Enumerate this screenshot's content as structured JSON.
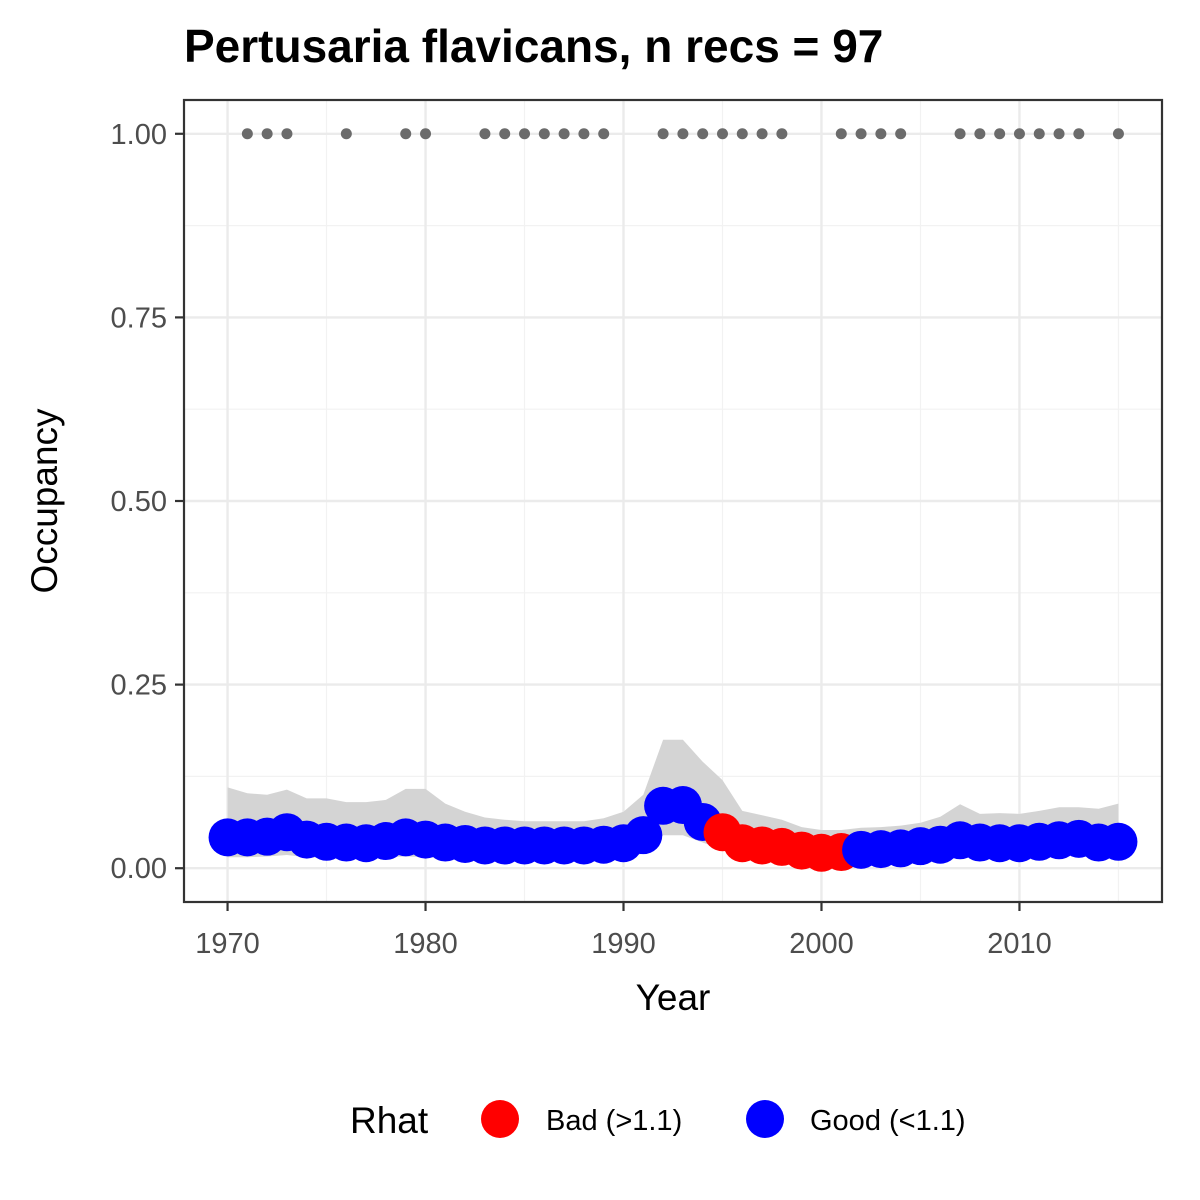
{
  "chart_data": {
    "type": "line",
    "title": "Pertusaria flavicans, n recs = 97",
    "xlabel": "Year",
    "ylabel": "Occupancy",
    "xlim": [
      1967.8,
      2017.2
    ],
    "ylim": [
      -0.046,
      1.046
    ],
    "x_ticks": [
      1970,
      1980,
      1990,
      2000,
      2010
    ],
    "x_tick_labels": [
      "1970",
      "1980",
      "1990",
      "2000",
      "2010"
    ],
    "y_ticks": [
      0,
      0.25,
      0.5,
      0.75,
      1
    ],
    "y_tick_labels": [
      "0.00",
      "0.25",
      "0.50",
      "0.75",
      "1.00"
    ],
    "grid": true,
    "legend": {
      "title": "Rhat",
      "position": "bottom",
      "entries": [
        {
          "key": "bad",
          "label": "Bad (>1.1)",
          "color": "#ff0000"
        },
        {
          "key": "good",
          "label": "Good (<1.1)",
          "color": "#0000ff"
        }
      ]
    },
    "colors": {
      "bad": "#ff0000",
      "good": "#0000ff",
      "ribbon": "#d4d4d4",
      "records": "#6b6b6b"
    },
    "years": [
      1970,
      1971,
      1972,
      1973,
      1974,
      1975,
      1976,
      1977,
      1978,
      1979,
      1980,
      1981,
      1982,
      1983,
      1984,
      1985,
      1986,
      1987,
      1988,
      1989,
      1990,
      1991,
      1992,
      1993,
      1994,
      1995,
      1996,
      1997,
      1998,
      1999,
      2000,
      2001,
      2002,
      2003,
      2004,
      2005,
      2006,
      2007,
      2008,
      2009,
      2010,
      2011,
      2012,
      2013,
      2014,
      2015
    ],
    "occupancy": [
      0.042,
      0.042,
      0.043,
      0.049,
      0.039,
      0.036,
      0.035,
      0.034,
      0.037,
      0.042,
      0.039,
      0.035,
      0.033,
      0.031,
      0.031,
      0.031,
      0.031,
      0.031,
      0.031,
      0.032,
      0.034,
      0.045,
      0.085,
      0.086,
      0.063,
      0.049,
      0.034,
      0.031,
      0.029,
      0.024,
      0.021,
      0.022,
      0.025,
      0.026,
      0.027,
      0.03,
      0.032,
      0.038,
      0.035,
      0.034,
      0.034,
      0.036,
      0.038,
      0.04,
      0.035,
      0.036
    ],
    "lower": [
      0.015,
      0.015,
      0.016,
      0.018,
      0.015,
      0.014,
      0.014,
      0.014,
      0.015,
      0.016,
      0.015,
      0.014,
      0.013,
      0.013,
      0.013,
      0.013,
      0.013,
      0.013,
      0.013,
      0.013,
      0.014,
      0.02,
      0.045,
      0.045,
      0.035,
      0.025,
      0.018,
      0.016,
      0.015,
      0.013,
      0.012,
      0.012,
      0.013,
      0.014,
      0.014,
      0.015,
      0.016,
      0.018,
      0.017,
      0.017,
      0.017,
      0.018,
      0.018,
      0.019,
      0.017,
      0.017
    ],
    "upper": [
      0.11,
      0.102,
      0.1,
      0.107,
      0.095,
      0.095,
      0.09,
      0.09,
      0.093,
      0.108,
      0.108,
      0.088,
      0.077,
      0.069,
      0.066,
      0.064,
      0.064,
      0.064,
      0.064,
      0.068,
      0.077,
      0.1,
      0.175,
      0.175,
      0.145,
      0.12,
      0.078,
      0.072,
      0.066,
      0.056,
      0.052,
      0.052,
      0.055,
      0.056,
      0.058,
      0.062,
      0.07,
      0.087,
      0.074,
      0.075,
      0.074,
      0.078,
      0.083,
      0.083,
      0.081,
      0.088
    ],
    "rhat": [
      "good",
      "good",
      "good",
      "good",
      "good",
      "good",
      "good",
      "good",
      "good",
      "good",
      "good",
      "good",
      "good",
      "good",
      "good",
      "good",
      "good",
      "good",
      "good",
      "good",
      "good",
      "good",
      "good",
      "good",
      "good",
      "bad",
      "bad",
      "bad",
      "bad",
      "bad",
      "bad",
      "bad",
      "good",
      "good",
      "good",
      "good",
      "good",
      "good",
      "good",
      "good",
      "good",
      "good",
      "good",
      "good",
      "good",
      "good"
    ],
    "record_years": [
      1971,
      1972,
      1973,
      1976,
      1979,
      1980,
      1983,
      1984,
      1985,
      1986,
      1987,
      1988,
      1989,
      1992,
      1993,
      1994,
      1995,
      1996,
      1997,
      1998,
      2001,
      2002,
      2003,
      2004,
      2007,
      2008,
      2009,
      2010,
      2011,
      2012,
      2013,
      2015
    ],
    "record_value": 1.0
  }
}
